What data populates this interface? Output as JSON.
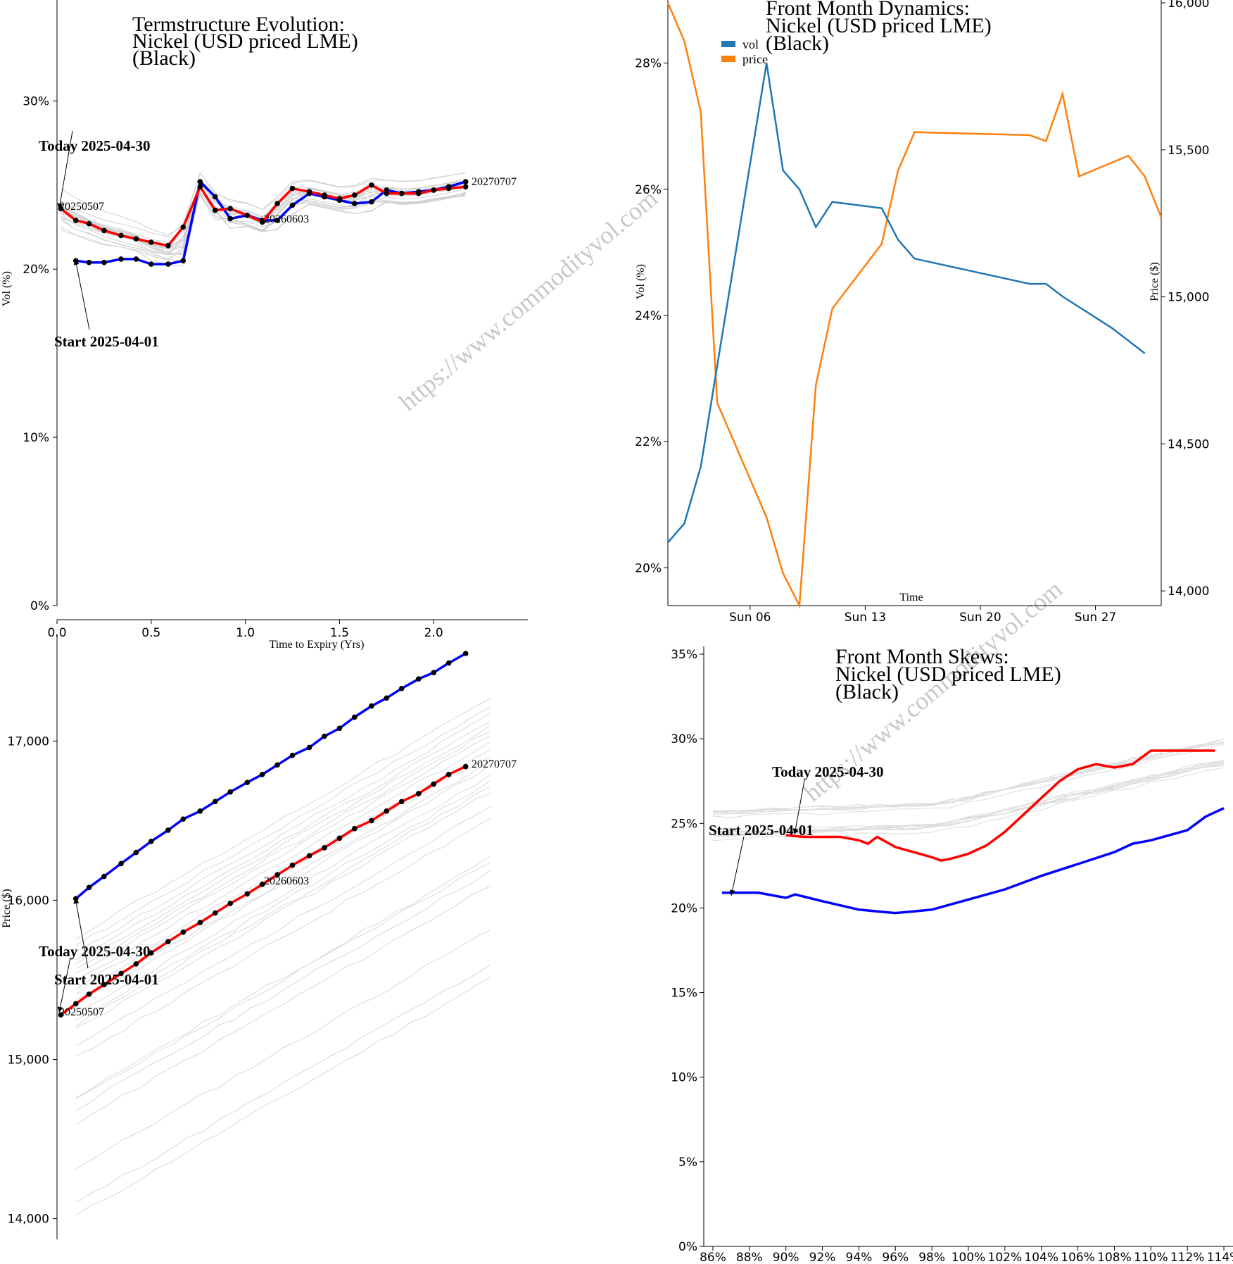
{
  "watermark": "https://www.commodityvol.com",
  "chart_data": [
    {
      "id": "term",
      "type": "line",
      "title_lines": [
        "Termstructure Evolution:",
        "Nickel (USD priced LME)",
        "(Black)"
      ],
      "xlabel": "Time to Expiry (Yrs)",
      "ylabel": "Vol (%)",
      "xlim": [
        0,
        2.5
      ],
      "ylim": [
        0,
        36
      ],
      "xticks": [
        0,
        0.5,
        1.0,
        1.5,
        2.0
      ],
      "xtick_labels": [
        "0.0",
        "0.5",
        "1.0",
        "1.5",
        "2.0"
      ],
      "yticks": [
        0,
        10,
        20,
        30
      ],
      "ytick_labels": [
        "0%",
        "10%",
        "20%",
        "30%"
      ],
      "annotations": {
        "today": "Today 2025-04-30",
        "start": "Start 2025-04-01"
      },
      "point_labels": [
        "20250507",
        "20260603",
        "20270707"
      ],
      "series": [
        {
          "name": "Start 2025-04-01",
          "color": "#0000ff",
          "x": [
            0.1,
            0.17,
            0.25,
            0.34,
            0.42,
            0.5,
            0.59,
            0.67,
            0.76,
            0.84,
            0.92,
            1.01,
            1.09,
            1.17,
            1.25,
            1.34,
            1.42,
            1.5,
            1.58,
            1.67,
            1.75,
            1.83,
            1.92,
            2.0,
            2.08,
            2.17
          ],
          "y": [
            20.5,
            20.4,
            20.4,
            20.6,
            20.6,
            20.3,
            20.3,
            20.5,
            25.2,
            24.3,
            23.0,
            23.2,
            22.9,
            22.9,
            23.8,
            24.5,
            24.3,
            24.1,
            23.9,
            24.0,
            24.7,
            24.5,
            24.6,
            24.7,
            24.9,
            25.2
          ]
        },
        {
          "name": "Today 2025-04-30",
          "color": "#ff0000",
          "x": [
            0.02,
            0.1,
            0.17,
            0.25,
            0.34,
            0.42,
            0.5,
            0.59,
            0.67,
            0.76,
            0.84,
            0.92,
            1.01,
            1.09,
            1.17,
            1.25,
            1.34,
            1.42,
            1.5,
            1.58,
            1.67,
            1.75,
            1.83,
            1.92,
            2.0,
            2.08,
            2.17
          ],
          "y": [
            23.6,
            22.9,
            22.7,
            22.3,
            22.0,
            21.8,
            21.6,
            21.4,
            22.5,
            24.9,
            23.5,
            23.6,
            23.2,
            22.8,
            23.9,
            24.8,
            24.6,
            24.4,
            24.2,
            24.4,
            25.0,
            24.5,
            24.5,
            24.5,
            24.7,
            24.8,
            24.9
          ]
        }
      ]
    },
    {
      "id": "dyn",
      "type": "line",
      "title_lines": [
        "Front Month Dynamics:",
        "Nickel (USD priced LME)",
        "(Black)"
      ],
      "xlabel": "Time",
      "ylabel": "Vol (%)",
      "y2label": "Price ($)",
      "x_range_days": [
        1,
        31
      ],
      "ylim": [
        19.4,
        29
      ],
      "y2lim": [
        13950,
        16000
      ],
      "xticks": [
        6,
        13,
        20,
        27
      ],
      "xtick_labels": [
        "Sun 06",
        "Sun 13",
        "Sun 20",
        "Sun 27"
      ],
      "yticks": [
        20,
        22,
        24,
        26,
        28
      ],
      "ytick_labels": [
        "20%",
        "22%",
        "24%",
        "26%",
        "28%"
      ],
      "y2ticks": [
        14000,
        14500,
        15000,
        15500,
        16000
      ],
      "y2tick_labels": [
        "14,000",
        "14,500",
        "15,000",
        "15,500",
        "16,000"
      ],
      "legend_position": "top-left",
      "series": [
        {
          "name": "vol",
          "color": "#1f77b4",
          "x": [
            1,
            2,
            3,
            7,
            8,
            9,
            10,
            11,
            14,
            15,
            16,
            23,
            24,
            25,
            28,
            29,
            30
          ],
          "y": [
            20.4,
            20.7,
            21.6,
            28.0,
            26.3,
            26.0,
            25.4,
            25.8,
            25.7,
            25.2,
            24.9,
            24.5,
            24.5,
            24.3,
            23.8,
            23.6,
            23.4
          ]
        },
        {
          "name": "price",
          "color": "#ff7f0e",
          "x": [
            1,
            2,
            3,
            4,
            7,
            8,
            9,
            10,
            11,
            14,
            15,
            16,
            23,
            24,
            25,
            26,
            29,
            30,
            31
          ],
          "y": [
            16000,
            15870,
            15630,
            14640,
            14250,
            14060,
            13950,
            14700,
            14960,
            15180,
            15430,
            15560,
            15550,
            15530,
            15690,
            15410,
            15480,
            15410,
            15270
          ]
        }
      ]
    },
    {
      "id": "fwd",
      "type": "line",
      "ylabel": "Price ($)",
      "ylim": [
        13870,
        17550
      ],
      "yticks": [
        14000,
        15000,
        16000,
        17000
      ],
      "ytick_labels": [
        "14,000",
        "15,000",
        "16,000",
        "17,000"
      ],
      "xlim": [
        0,
        2.5
      ],
      "annotations": {
        "today": "Today 2025-04-30",
        "start": "Start 2025-04-01"
      },
      "point_labels": [
        "20250507",
        "20260603",
        "20270707"
      ],
      "series": [
        {
          "name": "Start 2025-04-01",
          "color": "#0000ff",
          "x": [
            0.1,
            0.17,
            0.25,
            0.34,
            0.42,
            0.5,
            0.59,
            0.67,
            0.76,
            0.84,
            0.92,
            1.01,
            1.09,
            1.17,
            1.25,
            1.34,
            1.42,
            1.5,
            1.58,
            1.67,
            1.75,
            1.83,
            1.92,
            2.0,
            2.08,
            2.17
          ],
          "y": [
            16010,
            16080,
            16150,
            16230,
            16300,
            16370,
            16440,
            16510,
            16560,
            16620,
            16680,
            16740,
            16790,
            16850,
            16910,
            16960,
            17030,
            17080,
            17150,
            17220,
            17270,
            17330,
            17390,
            17430,
            17490,
            17550
          ]
        },
        {
          "name": "Today 2025-04-30",
          "color": "#ff0000",
          "x": [
            0.02,
            0.1,
            0.17,
            0.25,
            0.34,
            0.42,
            0.5,
            0.59,
            0.67,
            0.76,
            0.84,
            0.92,
            1.01,
            1.09,
            1.17,
            1.25,
            1.34,
            1.42,
            1.5,
            1.58,
            1.67,
            1.75,
            1.83,
            1.92,
            2.0,
            2.08,
            2.17
          ],
          "y": [
            15280,
            15350,
            15410,
            15470,
            15540,
            15600,
            15670,
            15740,
            15800,
            15860,
            15920,
            15980,
            16040,
            16100,
            16160,
            16220,
            16280,
            16330,
            16390,
            16450,
            16500,
            16560,
            16620,
            16670,
            16730,
            16790,
            16840
          ]
        }
      ]
    },
    {
      "id": "skew",
      "type": "line",
      "title_lines": [
        "Front Month Skews:",
        "Nickel (USD priced LME)",
        "(Black)"
      ],
      "xlim": [
        85.5,
        114.5
      ],
      "ylim": [
        0,
        35
      ],
      "xticks": [
        86,
        88,
        90,
        92,
        94,
        96,
        98,
        100,
        102,
        104,
        106,
        108,
        110,
        112,
        114
      ],
      "xtick_labels": [
        "86%",
        "88%",
        "90%",
        "92%",
        "94%",
        "96%",
        "98%",
        "100%",
        "102%",
        "104%",
        "106%",
        "108%",
        "110%",
        "112%",
        "114%"
      ],
      "yticks": [
        0,
        5,
        10,
        15,
        20,
        25,
        30,
        35
      ],
      "ytick_labels": [
        "0%",
        "5%",
        "10%",
        "15%",
        "20%",
        "25%",
        "30%",
        "35%"
      ],
      "annotations": {
        "today": "Today 2025-04-30",
        "start": "Start 2025-04-01"
      },
      "series": [
        {
          "name": "Start 2025-04-01",
          "color": "#0000ff",
          "x": [
            86.5,
            88.5,
            90,
            90.5,
            92,
            94,
            95,
            96,
            97,
            98,
            99,
            100,
            102,
            104,
            106,
            108,
            109,
            110,
            112,
            113,
            114
          ],
          "y": [
            20.9,
            20.9,
            20.6,
            20.8,
            20.4,
            19.9,
            19.8,
            19.7,
            19.8,
            19.9,
            20.2,
            20.5,
            21.1,
            21.9,
            22.6,
            23.3,
            23.8,
            24.0,
            24.6,
            25.4,
            25.9
          ]
        },
        {
          "name": "Today 2025-04-30",
          "color": "#ff0000",
          "x": [
            90,
            91,
            92,
            93,
            94,
            94.5,
            95,
            96,
            97,
            98,
            98.5,
            99,
            100,
            101,
            102,
            103,
            104,
            105,
            106,
            107,
            108,
            109,
            110,
            111,
            112,
            113.5
          ],
          "y": [
            24.3,
            24.2,
            24.2,
            24.2,
            24.0,
            23.8,
            24.2,
            23.6,
            23.3,
            23.0,
            22.8,
            22.9,
            23.2,
            23.7,
            24.5,
            25.5,
            26.5,
            27.5,
            28.2,
            28.5,
            28.3,
            28.5,
            29.3,
            29.3,
            29.3,
            29.3
          ]
        }
      ]
    }
  ]
}
